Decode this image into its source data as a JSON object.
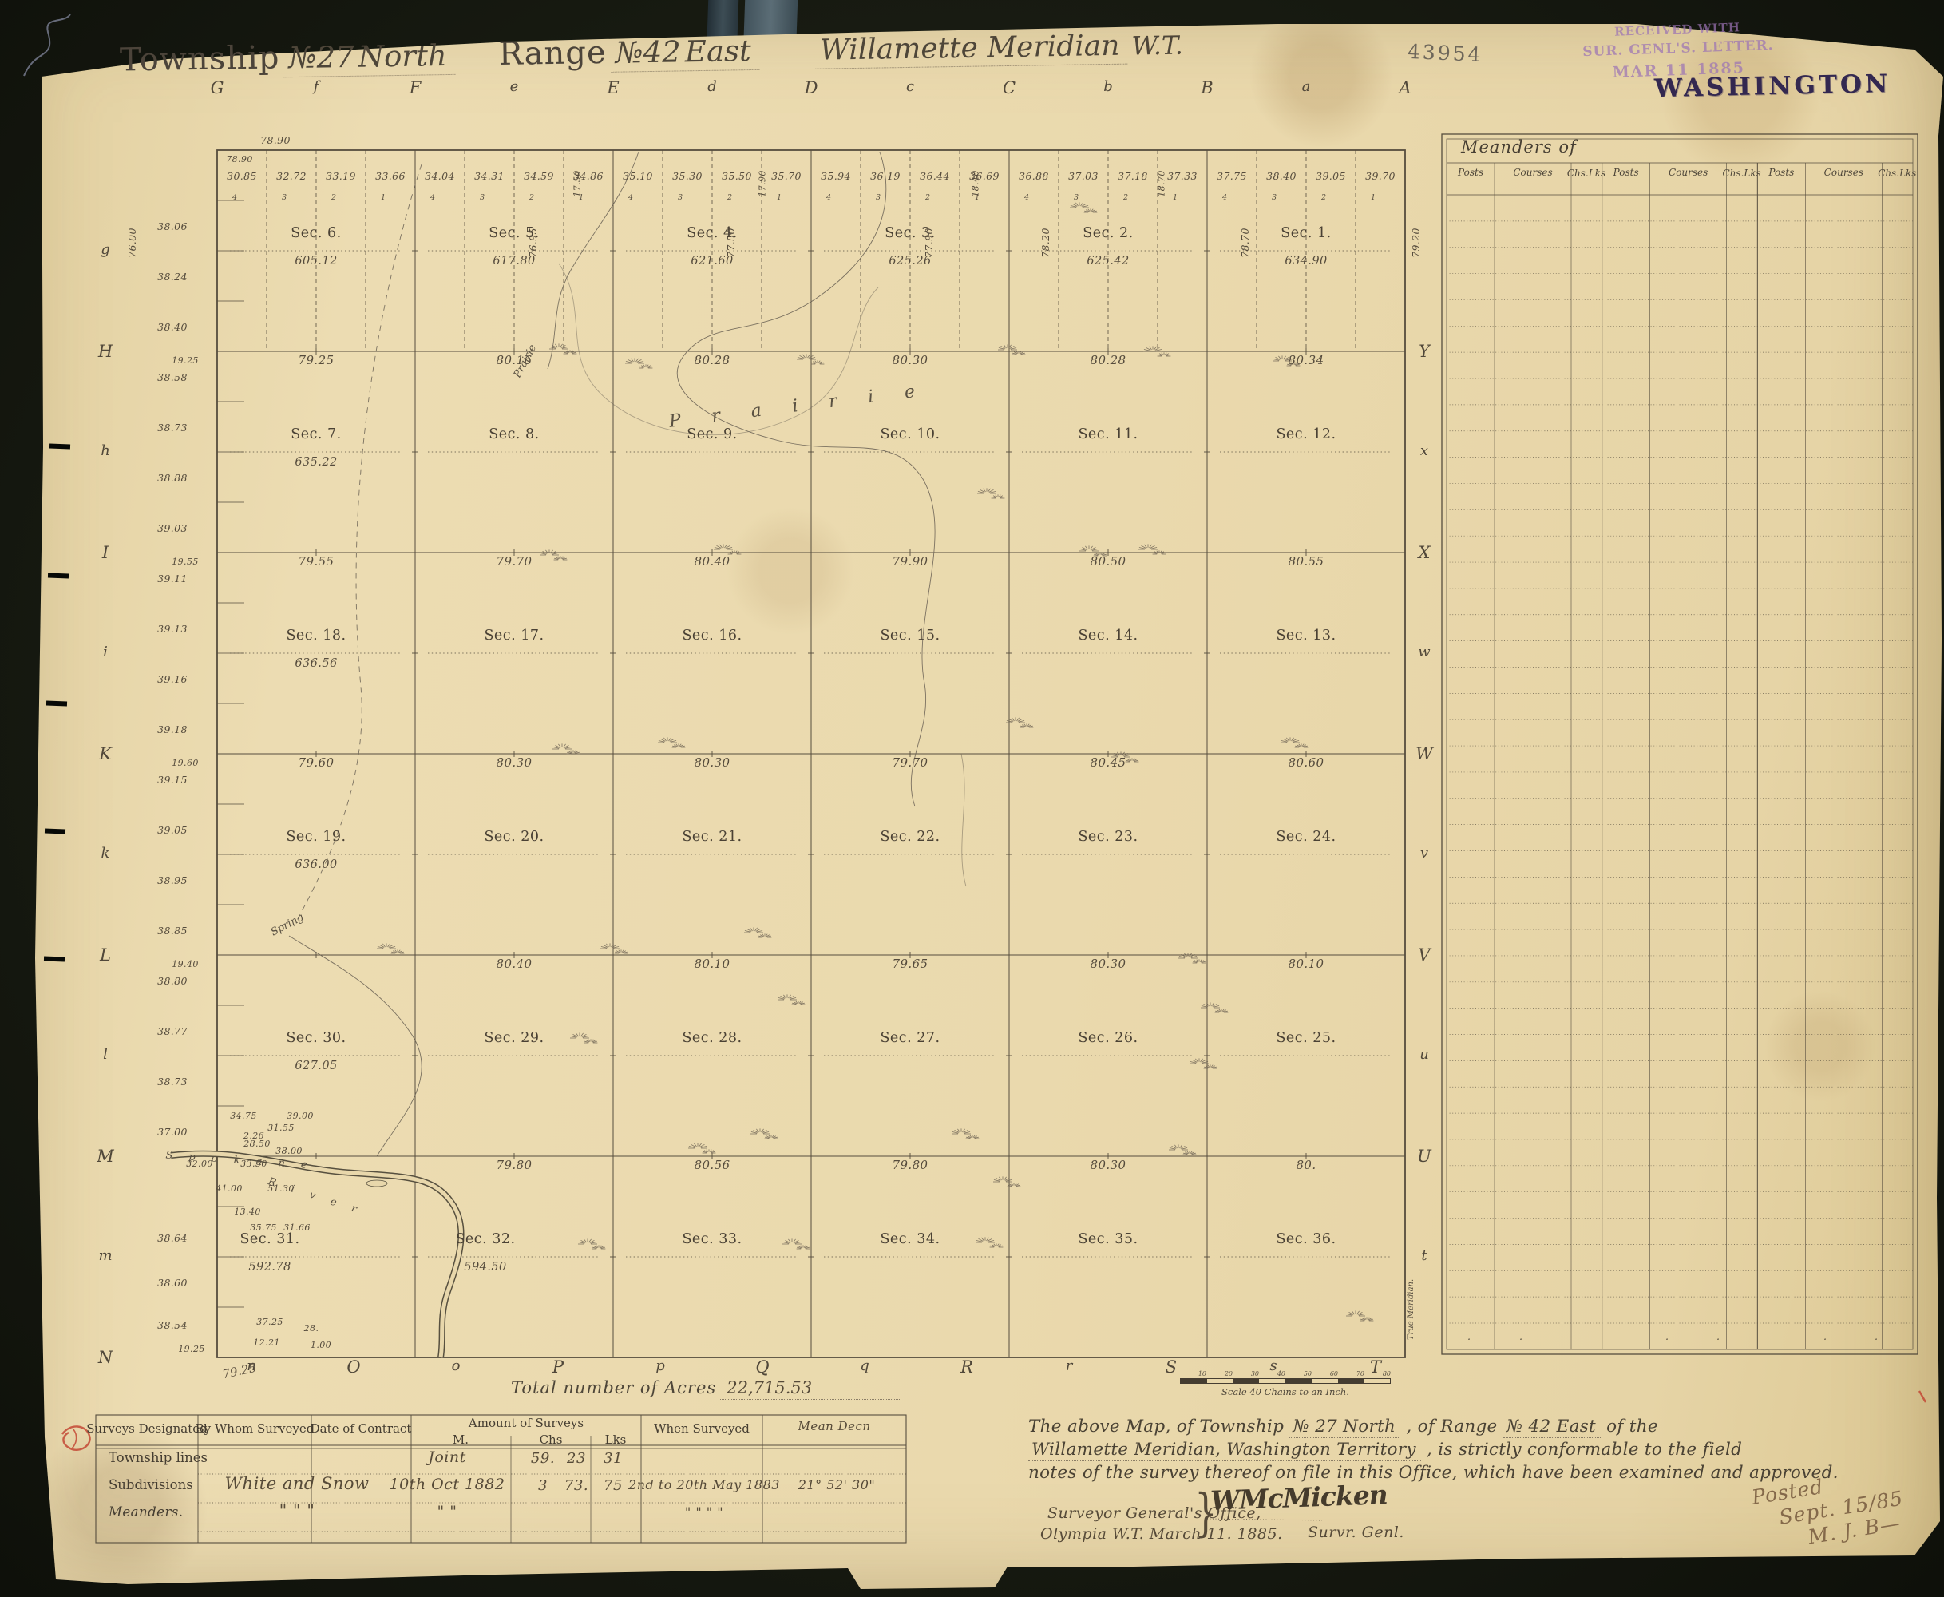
{
  "colors": {
    "background": "#171a11",
    "paper": "#e8d7ab",
    "ink": "#4e4639",
    "stamp_purple": "#9b73b4",
    "stamp_dark": "#332850",
    "handwriting_brown": "#84694a",
    "red": "#c2402e"
  },
  "header": {
    "title": {
      "t1": "Township",
      "t2": "№27",
      "t3": "North",
      "r1": "Range",
      "r2": "№42",
      "r3": "East",
      "m": "Willamette Meridian",
      "wt": "W.T."
    },
    "doc_number": "43954",
    "received_stamp": [
      "RECEIVED WITH",
      "SUR. GENL'S. LETTER.",
      "MAR 11 1885"
    ],
    "state_stamp": "WASHINGTON"
  },
  "map": {
    "top_letters": [
      "G",
      "f",
      "F",
      "e",
      "E",
      "d",
      "D",
      "c",
      "C",
      "b",
      "B",
      "a",
      "A"
    ],
    "left_letters": [
      "g",
      "H",
      "h",
      "I",
      "i",
      "K",
      "k",
      "L",
      "l",
      "M",
      "m",
      "N"
    ],
    "right_letters": [
      "Y",
      "x",
      "X",
      "w",
      "W",
      "v",
      "V",
      "u",
      "U",
      "t"
    ],
    "bottom_letters": [
      "n",
      "O",
      "o",
      "P",
      "p",
      "Q",
      "q",
      "R",
      "r",
      "S",
      "s",
      "T"
    ],
    "north_outside": "78.90",
    "north_inside": "78.90",
    "top_chains": [
      "30.85",
      "32.72",
      "33.19",
      "33.66",
      "34.04",
      "34.31",
      "34.59",
      "34.86",
      "35.10",
      "35.30",
      "35.50",
      "35.70",
      "35.94",
      "36.19",
      "36.44",
      "36.69",
      "36.88",
      "37.03",
      "37.18",
      "37.33",
      "37.75",
      "38.40",
      "39.05",
      "39.70"
    ],
    "lot_digits": [
      "4",
      "3",
      "2",
      "1"
    ],
    "closing_miles": [
      "76.00",
      "76.95",
      "77.50",
      "77.90",
      "78.20",
      "78.70",
      "79.20"
    ],
    "closing_quarters": [
      "17.50",
      "17.90",
      "18.40",
      "18.70"
    ],
    "west_chains": [
      "38.06",
      "38.24",
      "38.40",
      "38.58",
      "38.73",
      "38.88",
      "39.03",
      "39.11",
      "39.13",
      "39.16",
      "39.18",
      "39.15",
      "39.05",
      "38.95",
      "38.85",
      "38.80",
      "38.77",
      "38.73",
      "37.00",
      "38.64",
      "38.60",
      "38.54"
    ],
    "west_line_values": [
      "19.25",
      "19.55",
      "19.60",
      "19.40"
    ],
    "south_margin_value": "19.25",
    "south_value": "79.25",
    "rows": [
      {
        "sections": [
          {
            "n": "Sec. 6.",
            "a": "605.12"
          },
          {
            "n": "Sec. 5.",
            "a": "617.80"
          },
          {
            "n": "Sec. 4.",
            "a": "621.60"
          },
          {
            "n": "Sec. 3.",
            "a": "625.26"
          },
          {
            "n": "Sec. 2.",
            "a": "625.42"
          },
          {
            "n": "Sec. 1.",
            "a": "634.90"
          }
        ],
        "line_values": [
          "79.25",
          "80.16",
          "80.28",
          "80.30",
          "80.28",
          "80.34"
        ]
      },
      {
        "sections": [
          {
            "n": "Sec. 7.",
            "a": "635.22"
          },
          {
            "n": "Sec. 8."
          },
          {
            "n": "Sec. 9."
          },
          {
            "n": "Sec. 10."
          },
          {
            "n": "Sec. 11."
          },
          {
            "n": "Sec. 12."
          }
        ],
        "line_values": [
          "79.55",
          "79.70",
          "80.40",
          "79.90",
          "80.50",
          "80.55"
        ]
      },
      {
        "sections": [
          {
            "n": "Sec. 18.",
            "a": "636.56"
          },
          {
            "n": "Sec. 17."
          },
          {
            "n": "Sec. 16."
          },
          {
            "n": "Sec. 15."
          },
          {
            "n": "Sec. 14."
          },
          {
            "n": "Sec. 13."
          }
        ],
        "line_values": [
          "79.60",
          "80.30",
          "80.30",
          "79.70",
          "80.45",
          "80.60"
        ]
      },
      {
        "sections": [
          {
            "n": "Sec. 19.",
            "a": "636.00"
          },
          {
            "n": "Sec. 20."
          },
          {
            "n": "Sec. 21."
          },
          {
            "n": "Sec. 22."
          },
          {
            "n": "Sec. 23."
          },
          {
            "n": "Sec. 24."
          }
        ],
        "line_values": [
          "",
          "80.40",
          "80.10",
          "79.65",
          "80.30",
          "80.10"
        ]
      },
      {
        "sections": [
          {
            "n": "Sec. 30.",
            "a": "627.05"
          },
          {
            "n": "Sec. 29."
          },
          {
            "n": "Sec. 28."
          },
          {
            "n": "Sec. 27."
          },
          {
            "n": "Sec. 26."
          },
          {
            "n": "Sec. 25."
          }
        ],
        "line_values": [
          "",
          "79.80",
          "80.56",
          "79.80",
          "80.30",
          "80."
        ]
      },
      {
        "sections": [
          {
            "n": "Sec. 31.",
            "a": "592.78"
          },
          {
            "n": "Sec. 32.",
            "a": "594.50"
          },
          {
            "n": "Sec. 33."
          },
          {
            "n": "Sec. 34."
          },
          {
            "n": "Sec. 35."
          },
          {
            "n": "Sec. 36."
          }
        ],
        "line_values": null
      }
    ],
    "river_numbers": [
      "34.75",
      "39.00",
      "31.55",
      "28.50",
      "38.00",
      "2.26",
      "32.00",
      "33.50",
      "41.00",
      "51.30",
      "13.40",
      "35.75",
      "31.66",
      "37.25",
      "28.",
      "12.21",
      "1.00"
    ],
    "labels": {
      "river_1": "S p o k a n e",
      "river_2": "R i v e r",
      "spring": "Spring",
      "prairie_big": "P r a i r i e",
      "prairie_small": "Prairie",
      "true_meridian": "True Meridian."
    }
  },
  "meanders": {
    "title": "Meanders of",
    "columns": [
      "Posts",
      "Courses",
      "Chs.Lks"
    ],
    "groups": 3,
    "empty_rows": 43
  },
  "footer": {
    "total_acres_label": "Total number of Acres",
    "total_acres_value": "22,715.53",
    "scale_label": "Scale 40 Chains to an Inch.",
    "scale_ticks": [
      "10",
      "20",
      "30",
      "40",
      "50",
      "60",
      "70",
      "80"
    ],
    "table": {
      "headers": {
        "designated": "Surveys Designated",
        "by_whom": "By Whom Surveyed",
        "date": "Date of Contract",
        "amount": "Amount of Surveys",
        "m": "M.",
        "chs": "Chs",
        "lks": "Lks",
        "when": "When Surveyed",
        "dec": "Mean Decn"
      },
      "rows": [
        {
          "designated": "Township lines",
          "by_whom": "",
          "date": "Joint",
          "m": "59.",
          "chs": "23",
          "lks": "31",
          "when": "",
          "dec": ""
        },
        {
          "designated": "Subdivisions",
          "by_whom": "White and Snow",
          "date": "10th Oct 1882",
          "m": "3",
          "chs": "73.",
          "lks": "75",
          "when": "2nd to 20th May 1883",
          "dec": "21° 52' 30\""
        },
        {
          "designated": "Meanders.",
          "by_whom": "\"   \"   \"",
          "date": "\"   \"",
          "m": "",
          "chs": "",
          "lks": "",
          "when": "\"   \"   \"   \"",
          "dec": ""
        }
      ]
    },
    "certification": [
      [
        {
          "t": "The above Map, of Township "
        },
        {
          "t": "№ 27 North",
          "u": 1
        },
        {
          "t": " , of Range "
        },
        {
          "t": "№ 42 East",
          "u": 1
        },
        {
          "t": " of the"
        }
      ],
      [
        {
          "t": "Willamette  Meridian, Washington Territory",
          "u": 1
        },
        {
          "t": " , is strictly conformable to the field"
        }
      ],
      [
        {
          "t": "notes of the survey thereof on file in this Office, which have been examined and approved."
        }
      ]
    ],
    "office_line1": "Surveyor General's Office,",
    "office_line2": "Olympia W.T. March 11. 1885.",
    "brace": "}",
    "signature": "WMcMicken",
    "signature_title": "Survr. Genl.",
    "posted": [
      "Posted",
      "Sept. 15/85",
      "M. J. B—"
    ]
  }
}
